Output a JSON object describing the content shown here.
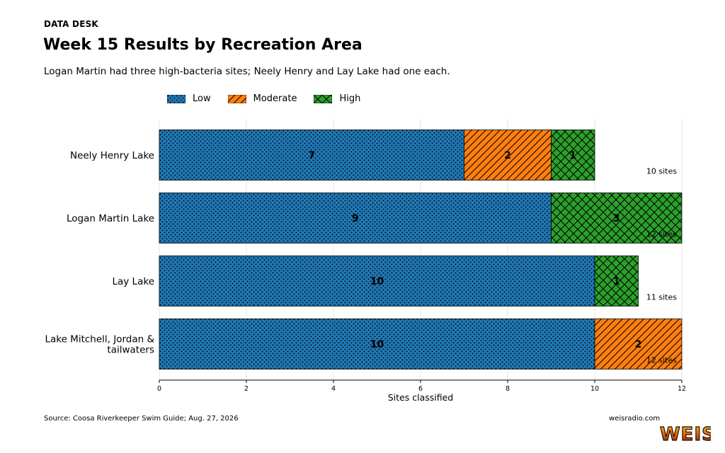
{
  "header": {
    "kicker": "DATA DESK",
    "title": "Week 15 Results by Recreation Area",
    "subtitle": "Logan Martin had three high-bacteria sites; Neely Henry and Lay Lake had one each."
  },
  "footer": {
    "source": "Source: Coosa Riverkeeper Swim Guide; Aug. 27, 2026",
    "site": "weisradio.com",
    "logo_text": "WEIS"
  },
  "chart_data": {
    "type": "bar",
    "orientation": "horizontal",
    "stacked": true,
    "categories": [
      "Neely Henry Lake",
      "Logan Martin Lake",
      "Lay Lake",
      "Lake Mitchell, Jordan & tailwaters"
    ],
    "series": [
      {
        "name": "Low",
        "values": [
          7,
          9,
          10,
          10
        ],
        "color": "#1f77b4",
        "pattern": "dots"
      },
      {
        "name": "Moderate",
        "values": [
          2,
          0,
          0,
          2
        ],
        "color": "#ff7f0e",
        "pattern": "diagonal"
      },
      {
        "name": "High",
        "values": [
          1,
          3,
          1,
          0
        ],
        "color": "#2ca02c",
        "pattern": "crosshatch"
      }
    ],
    "totals": [
      "10 sites",
      "12 sites",
      "11 sites",
      "12 sites"
    ],
    "xlabel": "Sites classified",
    "xlim": [
      0,
      12
    ],
    "xticks": [
      0,
      2,
      4,
      6,
      8,
      10,
      12
    ],
    "grid": "vertical",
    "legend_position": "top-left"
  }
}
